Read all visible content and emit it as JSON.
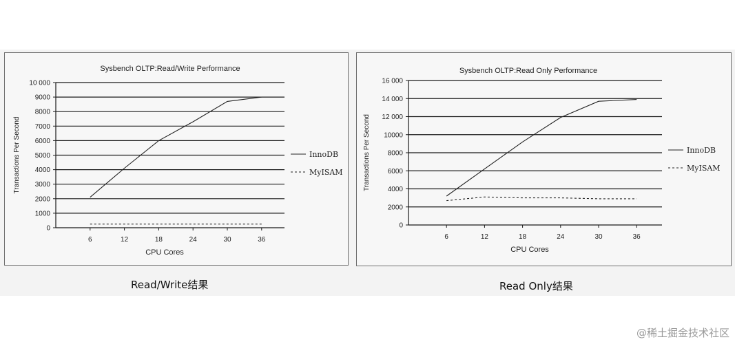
{
  "chart_data": [
    {
      "type": "line",
      "title": "Sysbench OLTP:Read/Write Performance",
      "xlabel": "CPU Cores",
      "ylabel": "Transactions Per Second",
      "x_ticks": [
        "6",
        "12",
        "18",
        "24",
        "30",
        "36"
      ],
      "y_ticks": [
        "0",
        "1000",
        "2000",
        "3000",
        "4000",
        "5000",
        "6000",
        "7000",
        "8000",
        "9000",
        "10 000"
      ],
      "xlim": [
        0,
        40
      ],
      "ylim": [
        0,
        10000
      ],
      "grid": "horizontal",
      "legend_position": "right",
      "series": [
        {
          "name": "InnoDB",
          "style": "solid",
          "x": [
            6,
            12,
            18,
            24,
            30,
            36
          ],
          "values": [
            2100,
            4100,
            6000,
            7300,
            8700,
            9000
          ]
        },
        {
          "name": "MyISAM",
          "style": "dashed",
          "x": [
            6,
            12,
            18,
            24,
            30,
            36
          ],
          "values": [
            250,
            250,
            250,
            250,
            250,
            250
          ]
        }
      ]
    },
    {
      "type": "line",
      "title": "Sysbench OLTP:Read Only Performance",
      "xlabel": "CPU Cores",
      "ylabel": "Transactions Per Second",
      "x_ticks": [
        "6",
        "12",
        "18",
        "24",
        "30",
        "36"
      ],
      "y_ticks": [
        "0",
        "2000",
        "4000",
        "6000",
        "8000",
        "10000",
        "12 000",
        "14 000",
        "16 000"
      ],
      "xlim": [
        0,
        40
      ],
      "ylim": [
        0,
        16000
      ],
      "grid": "horizontal",
      "legend_position": "right",
      "series": [
        {
          "name": "InnoDB",
          "style": "solid",
          "x": [
            6,
            12,
            18,
            24,
            30,
            36
          ],
          "values": [
            3200,
            6200,
            9200,
            11900,
            13700,
            13900
          ]
        },
        {
          "name": "MyISAM",
          "style": "dashed",
          "x": [
            6,
            12,
            18,
            24,
            30,
            36
          ],
          "values": [
            2700,
            3100,
            3000,
            3000,
            2900,
            2900
          ]
        }
      ]
    }
  ],
  "captions": {
    "left": "Read/Write结果",
    "right": "Read Only结果"
  },
  "watermark": "@稀土掘金技术社区"
}
